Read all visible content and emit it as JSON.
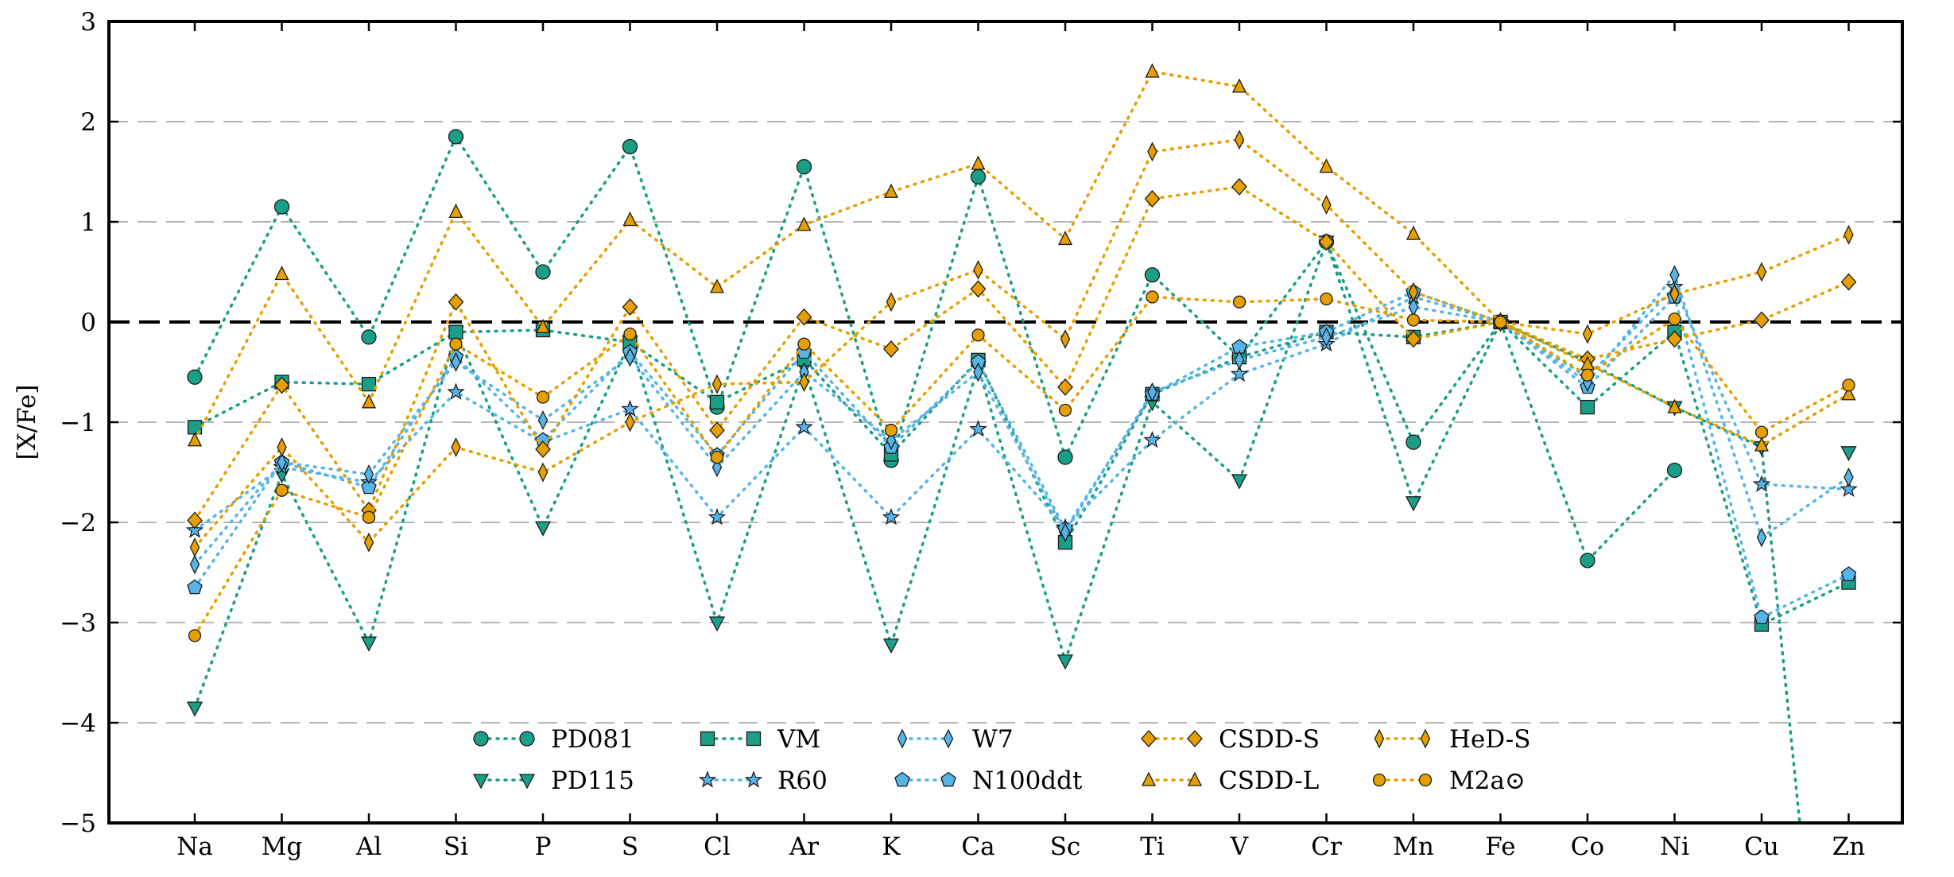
{
  "chart_data": {
    "type": "line",
    "ylabel": "[X/Fe]",
    "xlabel": "",
    "ylim": [
      -5,
      3
    ],
    "yticks": [
      -5,
      -4,
      -3,
      -2,
      -1,
      0,
      1,
      2,
      3
    ],
    "grid": "horizontal dashed",
    "legend_position": "bottom-center",
    "reference_line": 0,
    "categories": [
      "Na",
      "Mg",
      "Al",
      "Si",
      "P",
      "S",
      "Cl",
      "Ar",
      "K",
      "Ca",
      "Sc",
      "Ti",
      "V",
      "Cr",
      "Mn",
      "Fe",
      "Co",
      "Ni",
      "Cu",
      "Zn"
    ],
    "series": [
      {
        "name": "PD081",
        "marker": "circle",
        "color": "#1a9e85",
        "values": [
          -0.55,
          1.15,
          -0.15,
          1.85,
          0.5,
          1.75,
          -0.85,
          1.55,
          -1.38,
          1.45,
          -1.35,
          0.47,
          -0.35,
          0.8,
          -1.2,
          0.0,
          -2.38,
          -1.48,
          null,
          null
        ]
      },
      {
        "name": "PD115",
        "marker": "triangle-down",
        "color": "#1a9e85",
        "values": [
          -3.85,
          -1.52,
          -3.2,
          -0.1,
          -2.05,
          -0.2,
          -3.0,
          -0.45,
          -3.22,
          -0.45,
          -3.38,
          -0.8,
          -1.58,
          0.8,
          -1.8,
          0.0,
          -0.4,
          -0.85,
          -1.25,
          -1.3
        ],
        "overflow_note": "Ni to Cu segment continues below the axis"
      },
      {
        "name": "VM",
        "marker": "square",
        "color": "#1a9e85",
        "values": [
          -1.05,
          -0.6,
          -0.62,
          -0.1,
          -0.08,
          -0.2,
          -0.8,
          -0.37,
          -1.32,
          -0.38,
          -2.2,
          -0.72,
          -0.35,
          -0.1,
          -0.15,
          0.0,
          -0.85,
          -0.1,
          -3.02,
          -2.6
        ]
      },
      {
        "name": "R60",
        "marker": "star",
        "color": "#56b4e9",
        "values": [
          -2.08,
          -1.45,
          -1.6,
          -0.7,
          -1.2,
          -0.87,
          -1.95,
          -1.05,
          -1.95,
          -1.07,
          -2.05,
          -1.18,
          -0.52,
          -0.22,
          0.25,
          0.0,
          -0.55,
          0.35,
          -1.62,
          -1.67
        ]
      },
      {
        "name": "N100ddt",
        "marker": "pentagon",
        "color": "#56b4e9",
        "values": [
          -2.65,
          -1.4,
          -1.65,
          -0.35,
          -1.18,
          -0.3,
          -1.33,
          -0.3,
          -1.25,
          -0.4,
          -2.07,
          -0.72,
          -0.25,
          -0.1,
          0.3,
          0.0,
          -0.65,
          0.25,
          -2.95,
          -2.52
        ]
      },
      {
        "name": "W7",
        "marker": "diamond-thin",
        "color": "#56b4e9",
        "values": [
          -2.42,
          -1.4,
          -1.52,
          -0.4,
          -0.98,
          -0.35,
          -1.45,
          -0.5,
          -1.18,
          -0.5,
          -2.1,
          -0.7,
          -0.38,
          -0.15,
          0.15,
          0.0,
          -0.6,
          0.47,
          -2.15,
          -1.55
        ]
      },
      {
        "name": "CSDD-S",
        "marker": "diamond",
        "color": "#e69f00",
        "values": [
          -1.98,
          -0.63,
          -1.88,
          0.2,
          -1.27,
          0.15,
          -1.08,
          0.05,
          -0.27,
          0.33,
          -0.65,
          1.23,
          1.35,
          0.8,
          -0.17,
          0.0,
          -0.37,
          -0.17,
          0.02,
          0.4
        ]
      },
      {
        "name": "CSDD-L",
        "marker": "triangle-up",
        "color": "#e69f00",
        "values": [
          -1.18,
          0.48,
          -0.8,
          1.1,
          -0.05,
          1.02,
          0.35,
          0.97,
          1.3,
          1.58,
          0.83,
          2.5,
          2.35,
          1.55,
          0.88,
          0.0,
          -0.42,
          -0.85,
          -1.23,
          -0.72
        ]
      },
      {
        "name": "HeD-S",
        "marker": "diamond-thin",
        "color": "#e69f00",
        "values": [
          -2.25,
          -1.25,
          -2.2,
          -1.25,
          -1.5,
          -1.0,
          -0.62,
          -0.6,
          0.2,
          0.52,
          -0.17,
          1.7,
          1.82,
          1.17,
          0.3,
          0.0,
          -0.12,
          0.28,
          0.5,
          0.87
        ]
      },
      {
        "name": "M2a⊙",
        "marker": "circle-small",
        "color": "#e69f00",
        "values": [
          -3.13,
          -1.68,
          -1.95,
          -0.22,
          -0.75,
          -0.12,
          -1.35,
          -0.22,
          -1.08,
          -0.13,
          -0.88,
          0.25,
          0.2,
          0.23,
          0.02,
          0.0,
          -0.53,
          0.03,
          -1.1,
          -0.63
        ]
      }
    ]
  }
}
